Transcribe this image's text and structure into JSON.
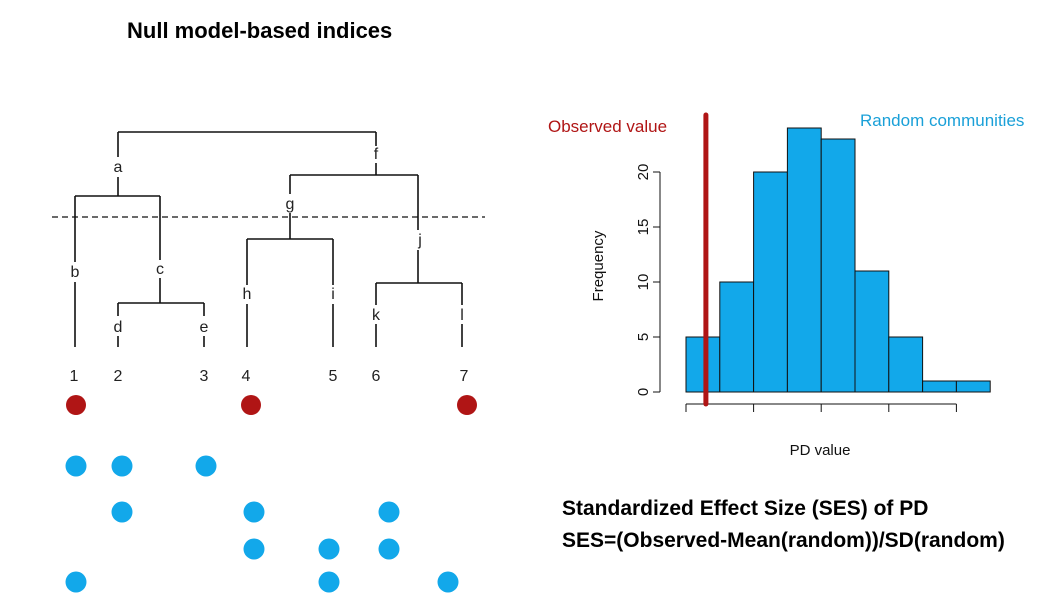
{
  "title": "Null model-based indices",
  "tree": {
    "nodes": [
      "a",
      "b",
      "c",
      "d",
      "e",
      "f",
      "g",
      "h",
      "i",
      "j",
      "k",
      "l"
    ],
    "tips": [
      "1",
      "2",
      "3",
      "4",
      "5",
      "6",
      "7"
    ]
  },
  "communities": {
    "observed": {
      "color": "#b01515",
      "tips": [
        1,
        4,
        7
      ]
    },
    "random": {
      "color": "#12a8ea",
      "rows": [
        [
          1,
          2,
          3
        ],
        [
          2,
          4,
          6
        ],
        [
          4,
          5,
          6
        ],
        [
          1,
          5,
          7
        ]
      ]
    }
  },
  "labels": {
    "observed": "Observed value",
    "random": "Random communities"
  },
  "chart_data": {
    "type": "bar",
    "bins": [
      [
        0,
        5
      ],
      [
        5,
        10
      ],
      [
        10,
        15
      ],
      [
        15,
        20
      ],
      [
        20,
        25
      ],
      [
        25,
        30
      ],
      [
        30,
        35
      ],
      [
        35,
        40
      ],
      [
        40,
        45
      ]
    ],
    "values": [
      5,
      10,
      20,
      24,
      23,
      11,
      5,
      1,
      1
    ],
    "xlabel": "PD value",
    "ylabel": "Frequency",
    "yticks": [
      "0",
      "5",
      "10",
      "15",
      "20"
    ],
    "ylim": [
      0,
      24
    ],
    "observed_value": 2.5,
    "bar_color": "#12a8ea",
    "observed_color": "#b01515"
  },
  "formula": {
    "line1": "Standardized Effect Size (SES) of PD",
    "line2": "SES=(Observed-Mean(random))/SD(random)"
  }
}
